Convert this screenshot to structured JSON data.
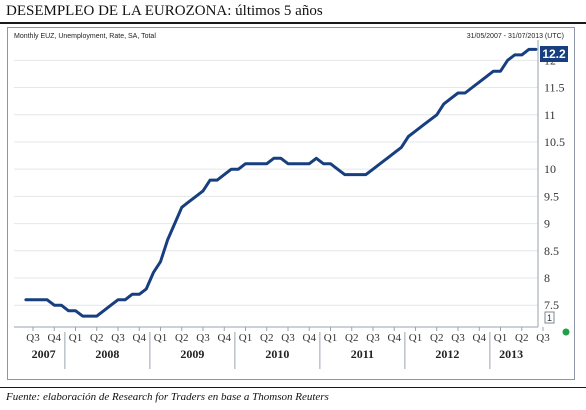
{
  "title": "DESEMPLEO DE LA EUROZONA: últimos 5 años",
  "source": "Fuente: elaboración de Research for Traders en base a Thomson Reuters",
  "chart_data": {
    "type": "line",
    "series_label": "Monthly EUZ, Unemployment, Rate, SA, Total",
    "date_range": "31/05/2007 - 31/07/2013 (UTC)",
    "last_value_label": "12.2",
    "marker_label": "1",
    "ylim": [
      7.1,
      12.3
    ],
    "yticks": [
      "7.5",
      "8",
      "8.5",
      "9",
      "9.5",
      "10",
      "10.5",
      "11",
      "11.5",
      "12"
    ],
    "quarters": [
      "Q3",
      "Q4",
      "Q1",
      "Q2",
      "Q3",
      "Q4",
      "Q1",
      "Q2",
      "Q3",
      "Q4",
      "Q1",
      "Q2",
      "Q3",
      "Q4",
      "Q1",
      "Q2",
      "Q3",
      "Q4",
      "Q1",
      "Q2",
      "Q3",
      "Q4",
      "Q1",
      "Q2",
      "Q3"
    ],
    "years": [
      "2007",
      "2008",
      "2009",
      "2010",
      "2011",
      "2012",
      "2013"
    ],
    "x": [
      "2007-06",
      "2007-07",
      "2007-08",
      "2007-09",
      "2007-10",
      "2007-11",
      "2007-12",
      "2008-01",
      "2008-02",
      "2008-03",
      "2008-04",
      "2008-05",
      "2008-06",
      "2008-07",
      "2008-08",
      "2008-09",
      "2008-10",
      "2008-11",
      "2008-12",
      "2009-01",
      "2009-02",
      "2009-03",
      "2009-04",
      "2009-05",
      "2009-06",
      "2009-07",
      "2009-08",
      "2009-09",
      "2009-10",
      "2009-11",
      "2009-12",
      "2010-01",
      "2010-02",
      "2010-03",
      "2010-04",
      "2010-05",
      "2010-06",
      "2010-07",
      "2010-08",
      "2010-09",
      "2010-10",
      "2010-11",
      "2010-12",
      "2011-01",
      "2011-02",
      "2011-03",
      "2011-04",
      "2011-05",
      "2011-06",
      "2011-07",
      "2011-08",
      "2011-09",
      "2011-10",
      "2011-11",
      "2011-12",
      "2012-01",
      "2012-02",
      "2012-03",
      "2012-04",
      "2012-05",
      "2012-06",
      "2012-07",
      "2012-08",
      "2012-09",
      "2012-10",
      "2012-11",
      "2012-12",
      "2013-01",
      "2013-02",
      "2013-03",
      "2013-04",
      "2013-05",
      "2013-06"
    ],
    "values": [
      7.6,
      7.6,
      7.6,
      7.6,
      7.5,
      7.5,
      7.4,
      7.4,
      7.3,
      7.3,
      7.3,
      7.4,
      7.5,
      7.6,
      7.6,
      7.7,
      7.7,
      7.8,
      8.1,
      8.3,
      8.7,
      9.0,
      9.3,
      9.4,
      9.5,
      9.6,
      9.8,
      9.8,
      9.9,
      10.0,
      10.0,
      10.1,
      10.1,
      10.1,
      10.1,
      10.2,
      10.2,
      10.1,
      10.1,
      10.1,
      10.1,
      10.2,
      10.1,
      10.1,
      10.0,
      9.9,
      9.9,
      9.9,
      9.9,
      10.0,
      10.1,
      10.2,
      10.3,
      10.4,
      10.6,
      10.7,
      10.8,
      10.9,
      11.0,
      11.2,
      11.3,
      11.4,
      11.4,
      11.5,
      11.6,
      11.7,
      11.8,
      11.8,
      12.0,
      12.1,
      12.1,
      12.2,
      12.2
    ],
    "colors": {
      "line": "#173f7f",
      "badge": "#173f7f",
      "marker": "#22a047"
    }
  }
}
